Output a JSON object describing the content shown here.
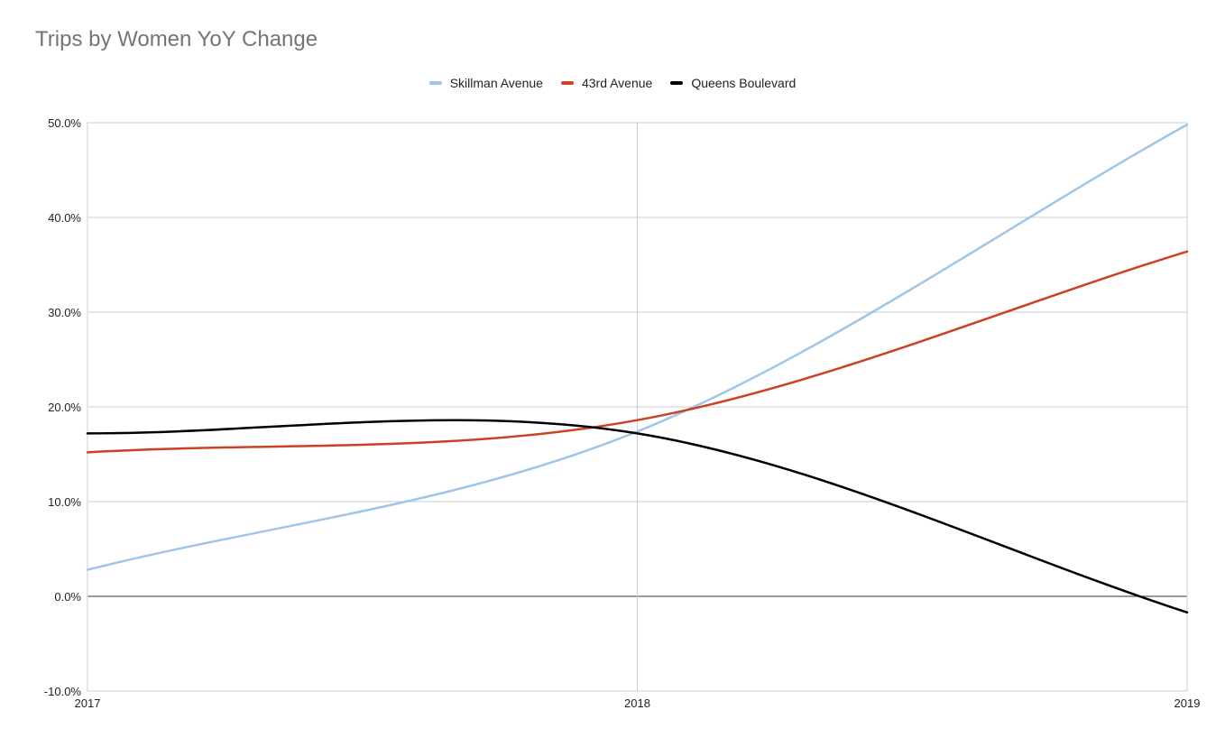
{
  "chart_data": {
    "type": "line",
    "title": "Trips by Women YoY Change",
    "xlabel": "",
    "ylabel": "",
    "x": [
      "2017",
      "2018",
      "2019"
    ],
    "ylim": [
      -10,
      50
    ],
    "yticks": [
      "-10.0%",
      "0.0%",
      "10.0%",
      "20.0%",
      "30.0%",
      "40.0%",
      "50.0%"
    ],
    "grid": true,
    "legend_position": "top",
    "smooth": true,
    "series": [
      {
        "name": "Skillman Avenue",
        "color": "#9fc5e8",
        "values": [
          2.8,
          17.4,
          49.8
        ]
      },
      {
        "name": "43rd Avenue",
        "color": "#cc4125",
        "values": [
          15.2,
          18.6,
          36.4
        ]
      },
      {
        "name": "Queens Boulevard",
        "color": "#000000",
        "values": [
          17.2,
          17.2,
          -1.7
        ]
      }
    ]
  }
}
